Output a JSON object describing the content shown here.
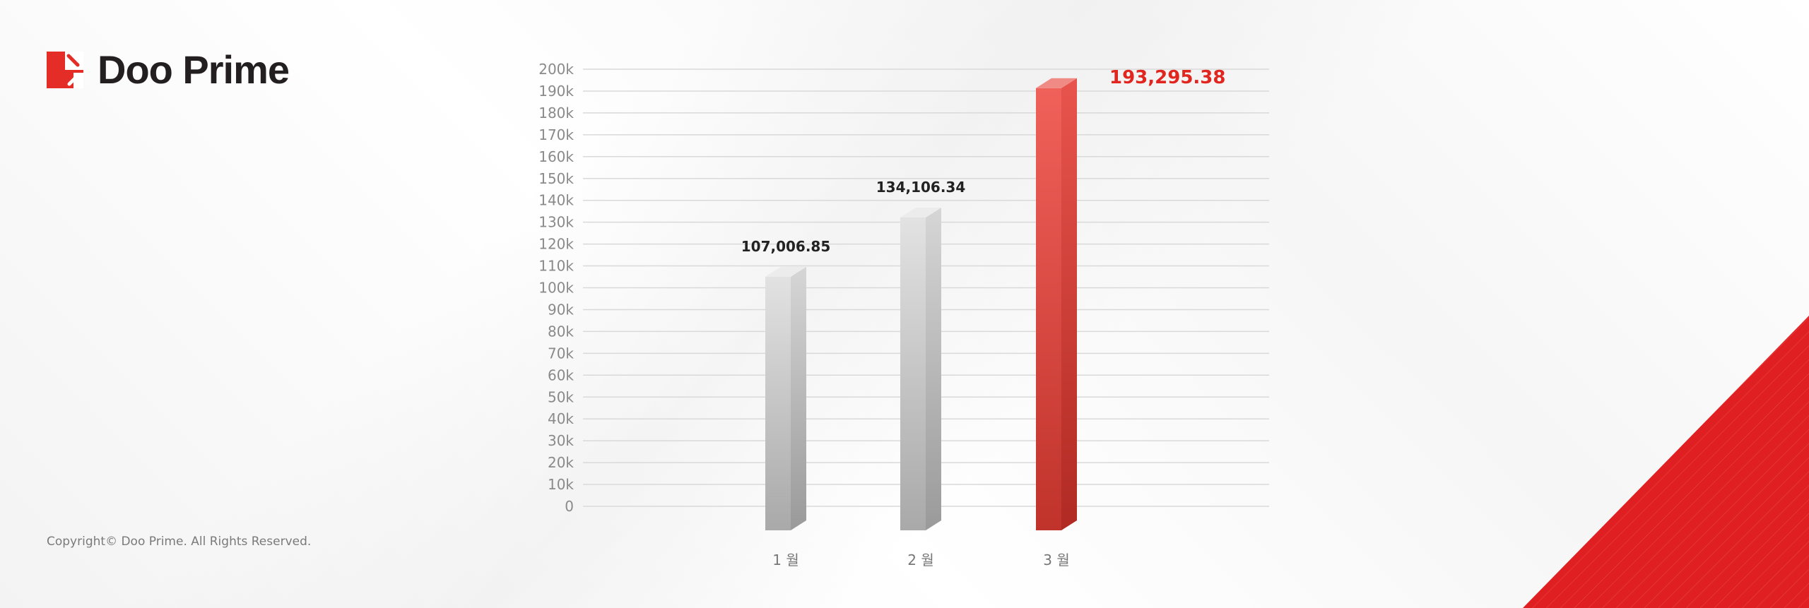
{
  "brand": {
    "name": "Doo Prime",
    "accent": "#e52d27"
  },
  "footer": {
    "copyright": "Copyright© Doo Prime. All Rights Reserved."
  },
  "chart_data": {
    "type": "bar",
    "categories": [
      "1 월",
      "2 월",
      "3 월"
    ],
    "values": [
      107006.85,
      134106.34,
      193295.38
    ],
    "data_labels": [
      "107,006.85",
      "134,106.34",
      "193,295.38"
    ],
    "highlight_index": 2,
    "colors": {
      "default": "#bdbdbd",
      "highlight": "#e8463e",
      "label_default": "#222222",
      "label_highlight": "#e0261f"
    },
    "ylim": [
      0,
      200000
    ],
    "yticks": [
      0,
      10000,
      20000,
      30000,
      40000,
      50000,
      60000,
      70000,
      80000,
      90000,
      100000,
      110000,
      120000,
      130000,
      140000,
      150000,
      160000,
      170000,
      180000,
      190000,
      200000
    ],
    "ytick_labels": [
      "0",
      "10k",
      "20k",
      "30k",
      "40k",
      "50k",
      "60k",
      "70k",
      "80k",
      "90k",
      "100k",
      "110k",
      "120k",
      "130k",
      "140k",
      "150k",
      "160k",
      "170k",
      "180k",
      "190k",
      "200k"
    ],
    "grid": true,
    "title": "",
    "xlabel": "",
    "ylabel": ""
  }
}
